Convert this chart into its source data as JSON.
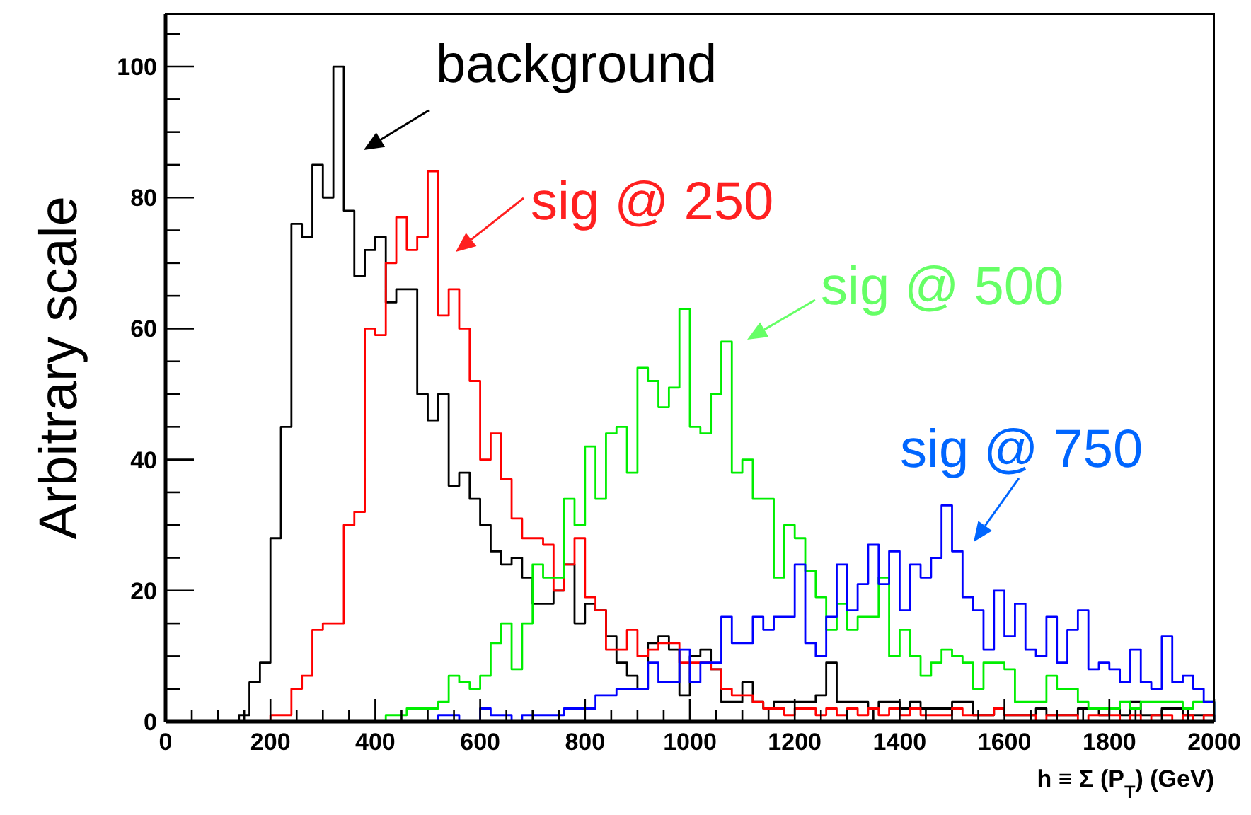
{
  "chart_data": {
    "type": "histogram",
    "xlabel": "h ≡ Σ (P$_{T}$)  (GeV)",
    "ylabel": "Arbitrary scale",
    "xlim": [
      0,
      2000
    ],
    "ylim": [
      0,
      108
    ],
    "xticks": [
      0,
      {
        "value": 50,
        "label": null
      },
      {
        "value": 100,
        "label": null
      },
      {
        "value": 150,
        "label": null
      },
      200,
      {
        "value": 250,
        "label": null
      },
      {
        "value": 300,
        "label": null
      },
      {
        "value": 350,
        "label": null
      },
      400,
      {
        "value": 450,
        "label": null
      },
      {
        "value": 500,
        "label": null
      },
      {
        "value": 550,
        "label": null
      },
      600,
      {
        "value": 650,
        "label": null
      },
      {
        "value": 700,
        "label": null
      },
      {
        "value": 750,
        "label": null
      },
      800,
      {
        "value": 850,
        "label": null
      },
      {
        "value": 900,
        "label": null
      },
      {
        "value": 950,
        "label": null
      },
      1000,
      {
        "value": 1050,
        "label": null
      },
      {
        "value": 1100,
        "label": null
      },
      {
        "value": 1150,
        "label": null
      },
      1200,
      {
        "value": 1250,
        "label": null
      },
      {
        "value": 1300,
        "label": null
      },
      {
        "value": 1350,
        "label": null
      },
      1400,
      {
        "value": 1450,
        "label": null
      },
      {
        "value": 1500,
        "label": null
      },
      {
        "value": 1550,
        "label": null
      },
      1600,
      {
        "value": 1650,
        "label": null
      },
      {
        "value": 1700,
        "label": null
      },
      {
        "value": 1750,
        "label": null
      },
      1800,
      {
        "value": 1850,
        "label": null
      },
      {
        "value": 1900,
        "label": null
      },
      {
        "value": 1950,
        "label": null
      },
      2000
    ],
    "yticks": [
      0,
      {
        "value": 5,
        "label": null
      },
      {
        "value": 10,
        "label": null
      },
      {
        "value": 15,
        "label": null
      },
      20,
      {
        "value": 25,
        "label": null
      },
      {
        "value": 30,
        "label": null
      },
      {
        "value": 35,
        "label": null
      },
      40,
      {
        "value": 45,
        "label": null
      },
      {
        "value": 50,
        "label": null
      },
      {
        "value": 55,
        "label": null
      },
      60,
      {
        "value": 65,
        "label": null
      },
      {
        "value": 70,
        "label": null
      },
      {
        "value": 75,
        "label": null
      },
      80,
      {
        "value": 85,
        "label": null
      },
      {
        "value": 90,
        "label": null
      },
      {
        "value": 95,
        "label": null
      },
      100,
      {
        "value": 105,
        "label": null
      }
    ],
    "legend": false,
    "bins": [
      0,
      20,
      40,
      60,
      80,
      100,
      120,
      140,
      160,
      180,
      200,
      220,
      240,
      260,
      280,
      300,
      320,
      340,
      360,
      380,
      400,
      420,
      440,
      460,
      480,
      500,
      520,
      540,
      560,
      580,
      600,
      620,
      640,
      660,
      680,
      700,
      720,
      740,
      760,
      780,
      800,
      820,
      840,
      860,
      880,
      900,
      920,
      940,
      960,
      980,
      1000,
      1020,
      1040,
      1060,
      1080,
      1100,
      1120,
      1140,
      1160,
      1180,
      1200,
      1220,
      1240,
      1260,
      1280,
      1300,
      1320,
      1340,
      1360,
      1380,
      1400,
      1420,
      1440,
      1460,
      1480,
      1500,
      1520,
      1540,
      1560,
      1580,
      1600,
      1620,
      1640,
      1660,
      1680,
      1700,
      1720,
      1740,
      1760,
      1780,
      1800,
      1820,
      1840,
      1860,
      1880,
      1900,
      1920,
      1940,
      1960,
      1980,
      2000
    ],
    "series": [
      {
        "name": "background",
        "color": "#000000",
        "values": [
          0,
          0,
          0,
          0,
          0,
          0,
          0,
          1,
          6,
          9,
          28,
          45,
          76,
          74,
          85,
          80,
          100,
          78,
          68,
          72,
          74,
          64,
          66,
          66,
          50,
          46,
          50,
          36,
          38,
          34,
          30,
          26,
          24,
          25,
          22,
          18,
          18,
          20,
          24,
          15,
          18,
          17,
          13,
          9,
          7,
          5,
          12,
          13,
          11,
          4,
          10,
          11,
          8,
          3,
          3,
          6,
          3,
          2,
          3,
          3,
          3,
          3,
          4,
          9,
          3,
          3,
          3,
          2,
          3,
          3,
          2,
          3,
          2,
          2,
          2,
          3,
          3,
          1,
          1,
          2,
          1,
          1,
          1,
          2,
          1,
          1,
          1,
          2,
          2,
          1,
          2,
          1,
          3,
          1,
          1,
          2,
          2,
          1,
          1,
          1
        ]
      },
      {
        "name": "sig @ 250",
        "color": "#ff0000",
        "values": [
          0,
          0,
          0,
          0,
          0,
          0,
          0,
          0,
          0,
          0,
          1,
          1,
          5,
          7,
          14,
          15,
          15,
          30,
          32,
          60,
          59,
          70,
          77,
          72,
          74,
          84,
          62,
          66,
          60,
          52,
          40,
          44,
          37,
          31,
          28,
          28,
          27,
          20,
          24,
          28,
          19,
          17,
          11,
          11,
          14,
          10,
          11,
          12,
          12,
          9,
          9,
          9,
          8,
          5,
          4,
          4,
          3,
          2,
          2,
          1,
          2,
          2,
          1,
          2,
          1,
          2,
          1,
          2,
          1,
          2,
          1,
          2,
          1,
          1,
          1,
          2,
          1,
          1,
          1,
          2,
          1,
          1,
          1,
          0,
          1,
          1,
          1,
          0,
          1,
          1,
          1,
          0,
          1,
          0,
          1,
          1,
          0,
          1,
          0,
          1
        ]
      },
      {
        "name": "sig @ 500",
        "color": "#00ee00",
        "values": [
          0,
          0,
          0,
          0,
          0,
          0,
          0,
          0,
          0,
          0,
          0,
          0,
          0,
          0,
          0,
          0,
          0,
          0,
          0,
          0,
          0,
          1,
          1,
          2,
          2,
          2,
          3,
          7,
          6,
          5,
          7,
          12,
          15,
          8,
          15,
          24,
          22,
          22,
          34,
          30,
          42,
          34,
          44,
          45,
          38,
          54,
          52,
          48,
          51,
          63,
          45,
          44,
          50,
          58,
          38,
          40,
          34,
          34,
          22,
          30,
          28,
          23,
          19,
          14,
          18,
          14,
          16,
          16,
          22,
          10,
          14,
          10,
          7,
          9,
          11,
          10,
          9,
          5,
          9,
          9,
          8,
          3,
          3,
          3,
          7,
          5,
          5,
          3,
          2,
          2,
          2,
          3,
          2,
          3,
          3,
          3,
          3,
          2,
          3,
          3
        ]
      },
      {
        "name": "sig @ 750",
        "color": "#0000ff",
        "values": [
          0,
          0,
          0,
          0,
          0,
          0,
          0,
          0,
          0,
          0,
          0,
          0,
          0,
          0,
          0,
          0,
          0,
          0,
          0,
          0,
          0,
          0,
          0,
          0,
          0,
          0,
          1,
          1,
          0,
          0,
          2,
          1,
          1,
          0,
          1,
          1,
          1,
          1,
          2,
          2,
          2,
          4,
          4,
          5,
          5,
          5,
          9,
          6,
          6,
          11,
          6,
          9,
          9,
          16,
          12,
          12,
          16,
          14,
          16,
          16,
          24,
          12,
          10,
          16,
          24,
          17,
          21,
          27,
          21,
          26,
          17,
          24,
          22,
          25,
          33,
          26,
          19,
          17,
          11,
          20,
          13,
          18,
          11,
          10,
          16,
          9,
          14,
          17,
          8,
          9,
          8,
          6,
          11,
          6,
          5,
          13,
          6,
          7,
          5,
          3
        ]
      }
    ]
  }
}
